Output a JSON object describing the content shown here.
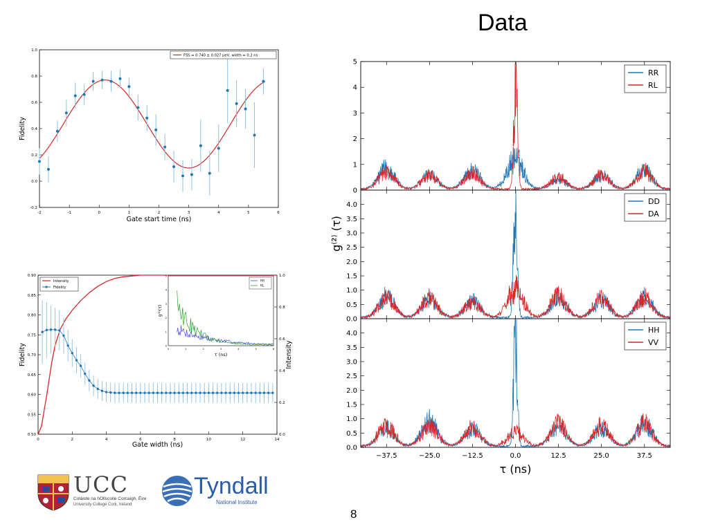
{
  "slide": {
    "title": "Data",
    "page_number": "8"
  },
  "logos": {
    "ucc": {
      "name": "UCC",
      "line1": "Coláiste na hOllscoile Corcaigh, Éire",
      "line2": "University College Cork, Ireland"
    },
    "tyndall": {
      "name": "Tyndall",
      "subtitle": "National Institute"
    }
  },
  "colors": {
    "blue": "#1f77b4",
    "red": "#d62728",
    "green": "#2ca02c",
    "purple": "#4444ee",
    "fit_red": "#d62728",
    "errorbar": "#8ec0e0"
  },
  "chart_data": [
    {
      "id": "fidelity_vs_gate_start",
      "type": "scatter",
      "xlabel": "Gate start time (ns)",
      "ylabel": "Fidelity",
      "xlim": [
        -2,
        6
      ],
      "ylim": [
        -0.2,
        1.0
      ],
      "xticks": [
        -2,
        -1,
        0,
        1,
        2,
        3,
        4,
        5,
        6
      ],
      "yticks": [
        -0.2,
        0.0,
        0.2,
        0.4,
        0.6,
        0.8,
        1.0
      ],
      "xticklabels": [
        "-2",
        "-1",
        "0",
        "1",
        "2",
        "3",
        "4",
        "5",
        "6"
      ],
      "yticklabels": [
        "-0.2",
        "0.0",
        "0.2",
        "0.4",
        "0.6",
        "0.8",
        "1.0"
      ],
      "legend": "FSS = 0.740 ± 0.027 μeV, width = 0.2 ns",
      "legend_position": "top-right",
      "points": {
        "x": [
          -2.0,
          -1.7,
          -1.4,
          -1.1,
          -0.8,
          -0.5,
          -0.2,
          0.1,
          0.4,
          0.7,
          1.0,
          1.3,
          1.6,
          1.9,
          2.2,
          2.5,
          2.8,
          3.1,
          3.4,
          3.7,
          4.0,
          4.3,
          4.6,
          4.9,
          5.2,
          5.5
        ],
        "y": [
          0.15,
          0.09,
          0.38,
          0.52,
          0.65,
          0.66,
          0.76,
          0.77,
          0.76,
          0.78,
          0.72,
          0.56,
          0.48,
          0.39,
          0.26,
          0.11,
          0.04,
          0.05,
          0.27,
          0.06,
          0.25,
          0.69,
          0.59,
          0.55,
          0.35,
          0.76
        ],
        "err": [
          0.1,
          0.1,
          0.08,
          0.1,
          0.1,
          0.08,
          0.07,
          0.07,
          0.08,
          0.07,
          0.07,
          0.1,
          0.1,
          0.12,
          0.1,
          0.12,
          0.12,
          0.12,
          0.2,
          0.17,
          0.18,
          0.25,
          0.18,
          0.15,
          0.25,
          0.1
        ]
      },
      "fit": {
        "name": "FSS = 0.740 ± 0.027 μeV, width = 0.2 ns",
        "model": "0.435 + 0.335*cos(2*pi*(x-0.2)/5.6)"
      }
    },
    {
      "id": "fidelity_intensity_vs_gate_width",
      "type": "line",
      "xlabel": "Gate width (ns)",
      "ylabel": "Fidelity",
      "y2label": "Intensity",
      "xlim": [
        0,
        14
      ],
      "ylim": [
        0.5,
        0.9
      ],
      "y2lim": [
        0.0,
        1.0
      ],
      "xticks": [
        0,
        2,
        4,
        6,
        8,
        10,
        12,
        14
      ],
      "yticks": [
        0.5,
        0.55,
        0.6,
        0.65,
        0.7,
        0.75,
        0.8,
        0.85,
        0.9
      ],
      "yticklabels": [
        "0.50",
        "0.55",
        "0.60",
        "0.65",
        "0.70",
        "0.75",
        "0.80",
        "0.85",
        "0.90"
      ],
      "y2ticks": [
        0.0,
        0.2,
        0.4,
        0.6,
        0.8,
        1.0
      ],
      "y2ticklabels": [
        "0.0",
        "0.2",
        "0.4",
        "0.6",
        "0.8",
        "1.0"
      ],
      "legend_position": "top-left",
      "series": [
        {
          "name": "Intensity",
          "color": "#d62728",
          "x": [
            0,
            0.2,
            0.5,
            0.8,
            1.0,
            1.3,
            1.6,
            2.0,
            2.5,
            3.0,
            3.5,
            4.0,
            4.5,
            5.0,
            5.5,
            6.0,
            7.0,
            8.0,
            14.0
          ],
          "y": [
            0.0,
            0.05,
            0.24,
            0.45,
            0.56,
            0.66,
            0.72,
            0.78,
            0.84,
            0.89,
            0.93,
            0.96,
            0.98,
            0.99,
            0.995,
            1.0,
            1.0,
            1.0,
            1.0
          ]
        },
        {
          "name": "Fidelity",
          "color": "#1f77b4",
          "x": [
            0.25,
            0.5,
            0.75,
            1.0,
            1.25,
            1.5,
            1.75,
            2.0,
            2.25,
            2.5,
            2.75,
            3.0,
            3.25,
            3.5,
            3.75,
            4.0,
            4.25,
            4.5,
            4.75,
            5.0,
            5.25,
            5.5,
            5.75,
            6.0,
            6.25,
            6.5,
            6.75,
            7.0,
            7.25,
            7.5,
            7.75,
            8.0,
            8.25,
            8.5,
            8.75,
            9.0,
            9.25,
            9.5,
            9.75,
            10.0,
            10.25,
            10.5,
            10.75,
            11.0,
            11.25,
            11.5,
            11.75,
            12.0,
            12.25,
            12.5,
            12.75,
            13.0,
            13.25,
            13.5,
            13.75
          ],
          "y": [
            0.757,
            0.762,
            0.763,
            0.763,
            0.761,
            0.748,
            0.723,
            0.704,
            0.686,
            0.672,
            0.652,
            0.635,
            0.622,
            0.614,
            0.609,
            0.606,
            0.605,
            0.604,
            0.604,
            0.604,
            0.604,
            0.604,
            0.604,
            0.604,
            0.604,
            0.604,
            0.604,
            0.604,
            0.604,
            0.604,
            0.604,
            0.604,
            0.604,
            0.604,
            0.604,
            0.604,
            0.604,
            0.604,
            0.604,
            0.604,
            0.604,
            0.604,
            0.604,
            0.604,
            0.604,
            0.604,
            0.604,
            0.604,
            0.604,
            0.604,
            0.604,
            0.604,
            0.604,
            0.604,
            0.604
          ],
          "err": [
            0.08,
            0.07,
            0.06,
            0.055,
            0.05,
            0.045,
            0.04,
            0.035,
            0.033,
            0.03,
            0.028,
            0.027,
            0.026,
            0.025,
            0.025,
            0.025,
            0.025,
            0.025,
            0.025,
            0.025,
            0.025,
            0.025,
            0.025,
            0.025,
            0.025,
            0.025,
            0.025,
            0.025,
            0.025,
            0.025,
            0.025,
            0.025,
            0.025,
            0.025,
            0.025,
            0.025,
            0.025,
            0.025,
            0.025,
            0.025,
            0.025,
            0.025,
            0.025,
            0.025,
            0.025,
            0.025,
            0.025,
            0.025,
            0.025,
            0.025,
            0.025,
            0.025,
            0.025,
            0.025,
            0.025
          ]
        }
      ]
    },
    {
      "id": "inset_g2_rr_rl",
      "type": "line",
      "xlabel": "τ (ns)",
      "ylabel": "g⁽²⁾(τ)",
      "xlim": [
        0,
        6
      ],
      "ylim": [
        0,
        5
      ],
      "xticks": [
        0,
        1,
        2,
        3,
        4,
        5,
        6
      ],
      "yticks": [
        0,
        1,
        2,
        3,
        4,
        5
      ],
      "legend_position": "top-right",
      "series": [
        {
          "name": "RR",
          "color": "#4444ee",
          "envelope": "1.5*exp(-x/2.0)"
        },
        {
          "name": "RL",
          "color": "#2ca02c",
          "envelope": "4.5*exp(-x/1.1)"
        }
      ]
    },
    {
      "id": "g2_correlations",
      "type": "line",
      "xlabel": "τ (ns)",
      "ylabel": "g⁽²⁾ (τ)",
      "xlim": [
        -45,
        45
      ],
      "xticks": [
        -37.5,
        -25.0,
        -12.5,
        0.0,
        12.5,
        25.0,
        37.5
      ],
      "xticklabels": [
        "−37.5",
        "−25.0",
        "−12.5",
        "0.0",
        "12.5",
        "25.0",
        "37.5"
      ],
      "peak_positions": [
        -37.5,
        -25.0,
        -12.5,
        0.0,
        12.5,
        25.0,
        37.5
      ],
      "panels": [
        {
          "ylim": [
            0,
            5
          ],
          "yticks": [
            0,
            1,
            2,
            3,
            4,
            5
          ],
          "yticklabels": [
            "0",
            "1",
            "2",
            "3",
            "4",
            "5"
          ],
          "legend_position": "top-right",
          "series": [
            {
              "name": "RR",
              "color": "#1f77b4",
              "peak_heights": [
                0.9,
                0.6,
                0.8,
                1.3,
                0.4,
                0.6,
                0.8
              ]
            },
            {
              "name": "RL",
              "color": "#d62728",
              "peak_heights": [
                0.7,
                0.6,
                0.7,
                4.6,
                0.5,
                0.6,
                0.75
              ]
            }
          ]
        },
        {
          "ylim": [
            0,
            4.5
          ],
          "yticks": [
            0,
            0.5,
            1.0,
            1.5,
            2.0,
            2.5,
            3.0,
            3.5,
            4.0
          ],
          "yticklabels": [
            "0.0",
            "0.5",
            "1.0",
            "1.5",
            "2.0",
            "2.5",
            "3.0",
            "3.5",
            "4.0"
          ],
          "legend_position": "top-right",
          "series": [
            {
              "name": "DD",
              "color": "#1f77b4",
              "peak_heights": [
                0.8,
                0.7,
                0.65,
                4.3,
                0.7,
                0.7,
                0.8
              ]
            },
            {
              "name": "DA",
              "color": "#d62728",
              "peak_heights": [
                0.75,
                0.75,
                0.6,
                1.1,
                0.85,
                0.75,
                0.75
              ]
            }
          ]
        },
        {
          "ylim": [
            0,
            4.5
          ],
          "yticks": [
            0,
            0.5,
            1.0,
            1.5,
            2.0,
            2.5,
            3.0,
            3.5,
            4.0
          ],
          "yticklabels": [
            "0.0",
            "0.5",
            "1.0",
            "1.5",
            "2.0",
            "2.5",
            "3.0",
            "3.5",
            "4.0"
          ],
          "legend_position": "top-right",
          "series": [
            {
              "name": "HH",
              "color": "#1f77b4",
              "peak_heights": [
                0.65,
                0.95,
                0.65,
                4.3,
                0.7,
                0.7,
                0.85
              ]
            },
            {
              "name": "VV",
              "color": "#d62728",
              "peak_heights": [
                0.85,
                0.8,
                0.7,
                0.55,
                0.85,
                0.8,
                0.85
              ]
            }
          ]
        }
      ]
    }
  ]
}
